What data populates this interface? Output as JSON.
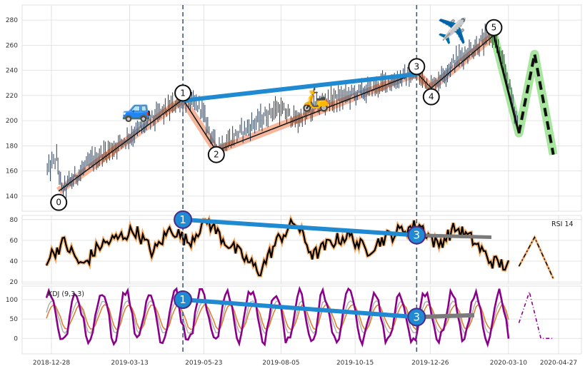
{
  "chart_data": [
    {
      "type": "candlestick",
      "panel": "price",
      "ylim": [
        128,
        292
      ],
      "yticks": [
        140,
        160,
        180,
        200,
        220,
        240,
        260,
        280
      ],
      "grid": true,
      "approx_close_path": [
        {
          "x": "2018-12-24",
          "y": 160
        },
        {
          "x": "2019-01-02",
          "y": 170
        },
        {
          "x": "2019-01-07",
          "y": 144
        },
        {
          "x": "2019-02-05",
          "y": 168
        },
        {
          "x": "2019-03-05",
          "y": 182
        },
        {
          "x": "2019-04-02",
          "y": 200
        },
        {
          "x": "2019-05-03",
          "y": 217
        },
        {
          "x": "2019-05-20",
          "y": 210
        },
        {
          "x": "2019-06-04",
          "y": 178
        },
        {
          "x": "2019-07-01",
          "y": 192
        },
        {
          "x": "2019-08-01",
          "y": 210
        },
        {
          "x": "2019-08-20",
          "y": 200
        },
        {
          "x": "2019-09-15",
          "y": 215
        },
        {
          "x": "2019-10-20",
          "y": 222
        },
        {
          "x": "2019-12-13",
          "y": 238
        },
        {
          "x": "2019-12-27",
          "y": 226
        },
        {
          "x": "2020-01-20",
          "y": 248
        },
        {
          "x": "2020-02-18",
          "y": 265
        },
        {
          "x": "2020-02-25",
          "y": 268
        },
        {
          "x": "2020-03-10",
          "y": 230
        },
        {
          "x": "2020-03-20",
          "y": 192
        }
      ],
      "wave_points": [
        {
          "label": "0",
          "x": "2019-01-04",
          "y": 135
        },
        {
          "label": "1",
          "x": "2019-05-03",
          "y": 222
        },
        {
          "label": "2",
          "x": "2019-06-04",
          "y": 173
        },
        {
          "label": "3",
          "x": "2019-12-13",
          "y": 243
        },
        {
          "label": "4",
          "x": "2019-12-27",
          "y": 219
        },
        {
          "label": "5",
          "x": "2020-02-25",
          "y": 274
        }
      ],
      "projection": [
        {
          "x": "2020-02-25",
          "y": 268
        },
        {
          "x": "2020-03-20",
          "y": 190
        },
        {
          "x": "2020-04-04",
          "y": 253
        },
        {
          "x": "2020-04-22",
          "y": 173
        }
      ],
      "divergence_line": [
        {
          "x": "2019-05-03",
          "y": 216
        },
        {
          "x": "2019-12-13",
          "y": 237
        }
      ]
    },
    {
      "type": "line",
      "panel": "rsi",
      "title": "RSI 14",
      "ylim": [
        18,
        84
      ],
      "yticks": [
        20,
        40,
        60,
        80
      ],
      "series": [
        {
          "values": [
            42,
            58,
            35,
            55,
            62,
            70,
            48,
            72,
            58,
            80,
            60,
            45,
            30,
            60,
            78,
            45,
            58,
            65,
            50,
            62,
            70,
            75,
            55,
            72,
            60,
            40,
            35
          ]
        }
      ],
      "divergence_points": [
        {
          "label": "1",
          "x": "2019-05-03",
          "y": 80
        },
        {
          "label": "3",
          "x": "2019-12-13",
          "y": 65
        }
      ],
      "projection": [
        {
          "x": "2020-03-20",
          "y": 35
        },
        {
          "x": "2020-04-04",
          "y": 63
        },
        {
          "x": "2020-04-22",
          "y": 23
        }
      ]
    },
    {
      "type": "line",
      "panel": "kdj",
      "title": "KDJ (9,3,3)",
      "ylim": [
        -40,
        135
      ],
      "yticks": [
        0,
        50,
        100
      ],
      "divergence_points": [
        {
          "label": "1",
          "x": "2019-05-03",
          "y": 100
        },
        {
          "label": "3",
          "x": "2019-12-13",
          "y": 55
        }
      ],
      "projection": [
        {
          "x": "2020-03-20",
          "y": 40
        },
        {
          "x": "2020-03-30",
          "y": 120
        },
        {
          "x": "2020-04-10",
          "y": 0
        },
        {
          "x": "2020-04-22",
          "y": 0
        }
      ]
    }
  ],
  "x_axis": {
    "ticks": [
      "2018-12-28",
      "2019-03-13",
      "2019-05-23",
      "2019-08-05",
      "2019-10-15",
      "2019-12-26",
      "2020-03-10",
      "2020-04-27"
    ]
  },
  "emoji": {
    "car": "🚙",
    "scooter": "🛵",
    "plane": "✈️"
  },
  "colors": {
    "candle": "#2c3e55",
    "divergence": "#1f8ad1",
    "wave_band": "#f3a98a",
    "projection_band": "#a8e6a0",
    "rsi_glow": "#f5a862",
    "kdj_purple": "#8b008b",
    "kdj_k": "#b0b0b0",
    "kdj_d": "#e07b2e",
    "kdj_glow": "#f5a862",
    "trend_gray": "#7a7a7a"
  }
}
